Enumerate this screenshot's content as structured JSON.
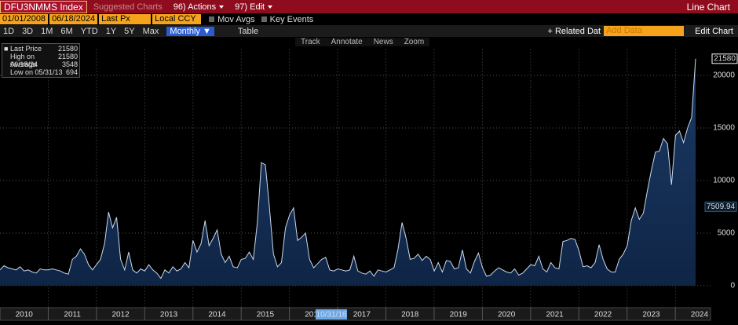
{
  "header": {
    "ticker": "DFU3NMMS Index",
    "suggested": "Suggested Charts",
    "actions": "96) Actions",
    "edit": "97) Edit",
    "view": "Line Chart"
  },
  "controls": {
    "start_date": "01/01/2008",
    "end_date": "06/18/2024",
    "price_field": "Last Px",
    "currency": "Local CCY",
    "mov_avgs": "Mov Avgs",
    "key_events": "Key Events",
    "ranges": [
      "1D",
      "3D",
      "1M",
      "6M",
      "YTD",
      "1Y",
      "5Y",
      "Max"
    ],
    "frequency": "Monthly ▼",
    "table": "Table",
    "related": "+ Related Dat",
    "add_data": "Add Data",
    "edit_chart": "Edit Chart"
  },
  "tools": [
    "Track",
    "Annotate",
    "News",
    "Zoom"
  ],
  "chart_data": {
    "type": "area",
    "series": [
      {
        "name": "Last Price",
        "color": "#c9d9ee",
        "fill": "#0f2546",
        "values": [
          1500,
          1900,
          1700,
          1600,
          1500,
          1800,
          1400,
          1500,
          1300,
          1200,
          1600,
          1500,
          1500,
          1600,
          1500,
          1400,
          1200,
          1100,
          2500,
          2800,
          3500,
          3000,
          2000,
          1500,
          2000,
          2500,
          4000,
          7000,
          5500,
          6500,
          2500,
          1500,
          3200,
          1500,
          1200,
          1600,
          1400,
          2000,
          1500,
          1200,
          694,
          1500,
          1200,
          1800,
          1400,
          1600,
          2200,
          1700,
          4300,
          3200,
          4000,
          6200,
          3800,
          4500,
          5300,
          3000,
          2200,
          2800,
          1800,
          1700,
          2500,
          2600,
          3200,
          2500,
          6000,
          11700,
          11500,
          7500,
          3000,
          1800,
          2200,
          5500,
          6700,
          7400,
          4300,
          4600,
          5000,
          2500,
          1700,
          2100,
          2500,
          2700,
          1500,
          1400,
          1600,
          1500,
          1400,
          1500,
          2800,
          1400,
          1200,
          1100,
          1400,
          900,
          1500,
          1400,
          1300,
          1500,
          1700,
          3500,
          6000,
          4500,
          2500,
          2600,
          3000,
          2400,
          2800,
          2500,
          1400,
          2200,
          1300,
          2400,
          2300,
          1600,
          1700,
          3400,
          1600,
          1200,
          2300,
          3100,
          1700,
          900,
          1000,
          1400,
          1700,
          1500,
          1300,
          1200,
          1600,
          1000,
          1200,
          1600,
          2000,
          1900,
          2800,
          1600,
          1300,
          2200,
          1700,
          1600,
          4200,
          4300,
          4500,
          4400,
          3300,
          1800,
          1900,
          1700,
          2200,
          3900,
          2500,
          1600,
          1300,
          1300,
          2500,
          3000,
          3800,
          6200,
          7400,
          6300,
          6900,
          9000,
          11000,
          12700,
          12800,
          14000,
          13500,
          9600,
          14300,
          14700,
          13600,
          15000,
          16000,
          21580
        ]
      }
    ],
    "legend_stats": [
      {
        "label": "High on 06/18/24",
        "value": 21580
      },
      {
        "label": "Average",
        "value": 3548
      },
      {
        "label": "Low on 05/31/13",
        "value": 694
      }
    ],
    "annotations": [
      {
        "value": 7509.94
      }
    ],
    "crosshair_label": "10/31/16",
    "xlim": [
      2010,
      2024.42
    ],
    "xticks": [
      2010,
      2011,
      2012,
      2013,
      2014,
      2015,
      2016,
      2017,
      2018,
      2019,
      2020,
      2021,
      2022,
      2023,
      2024
    ],
    "ylim": [
      -1200,
      22500
    ],
    "yticks": [
      0,
      5000,
      10000,
      15000,
      20000
    ],
    "grid": true
  }
}
